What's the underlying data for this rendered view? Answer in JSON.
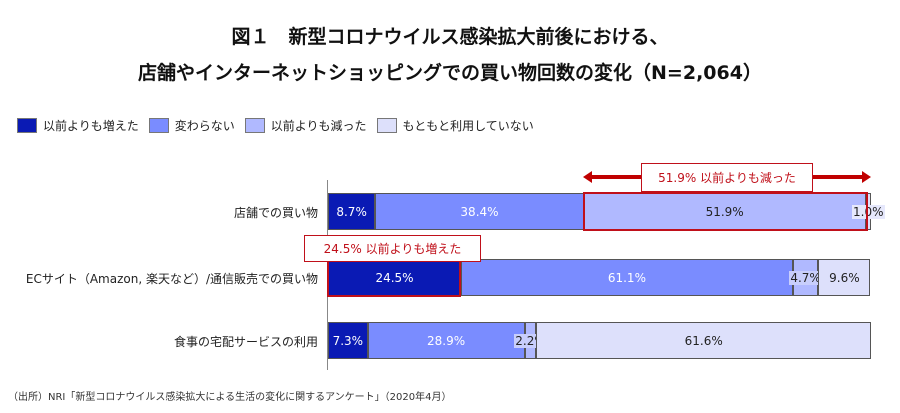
{
  "chart_data": {
    "type": "bar",
    "stacked": true,
    "orientation": "horizontal",
    "title": [
      "図１　新型コロナウイルス感染拡大前後における、",
      "店舗やインターネットショッピングでの買い物回数の変化（N=2,064）"
    ],
    "categories": [
      "店舗での買い物",
      "ECサイト（Amazon, 楽天など）/通信販売での買い物",
      "食事の宅配サービスの利用"
    ],
    "series": [
      {
        "name": "以前よりも増えた",
        "color": "#0a1ab4",
        "values": [
          8.7,
          24.5,
          7.3
        ]
      },
      {
        "name": "変わらない",
        "color": "#7a8cff",
        "values": [
          38.4,
          61.1,
          28.9
        ]
      },
      {
        "name": "以前よりも減った",
        "color": "#b0b9ff",
        "values": [
          51.9,
          4.7,
          2.2
        ]
      },
      {
        "name": "もともと利用していない",
        "color": "#dde0fb",
        "values": [
          1.0,
          9.6,
          61.6
        ]
      }
    ],
    "xlim": [
      0,
      100
    ],
    "legend_position": "top-left",
    "annotations": [
      {
        "text": "51.9% 以前よりも減った",
        "row": 0,
        "series": 2
      },
      {
        "text": "24.5% 以前よりも増えた",
        "row": 1,
        "series": 0
      }
    ]
  },
  "source": "（出所）NRI「新型コロナウイルス感染拡大による生活の変化に関するアンケート」（2020年4月）"
}
